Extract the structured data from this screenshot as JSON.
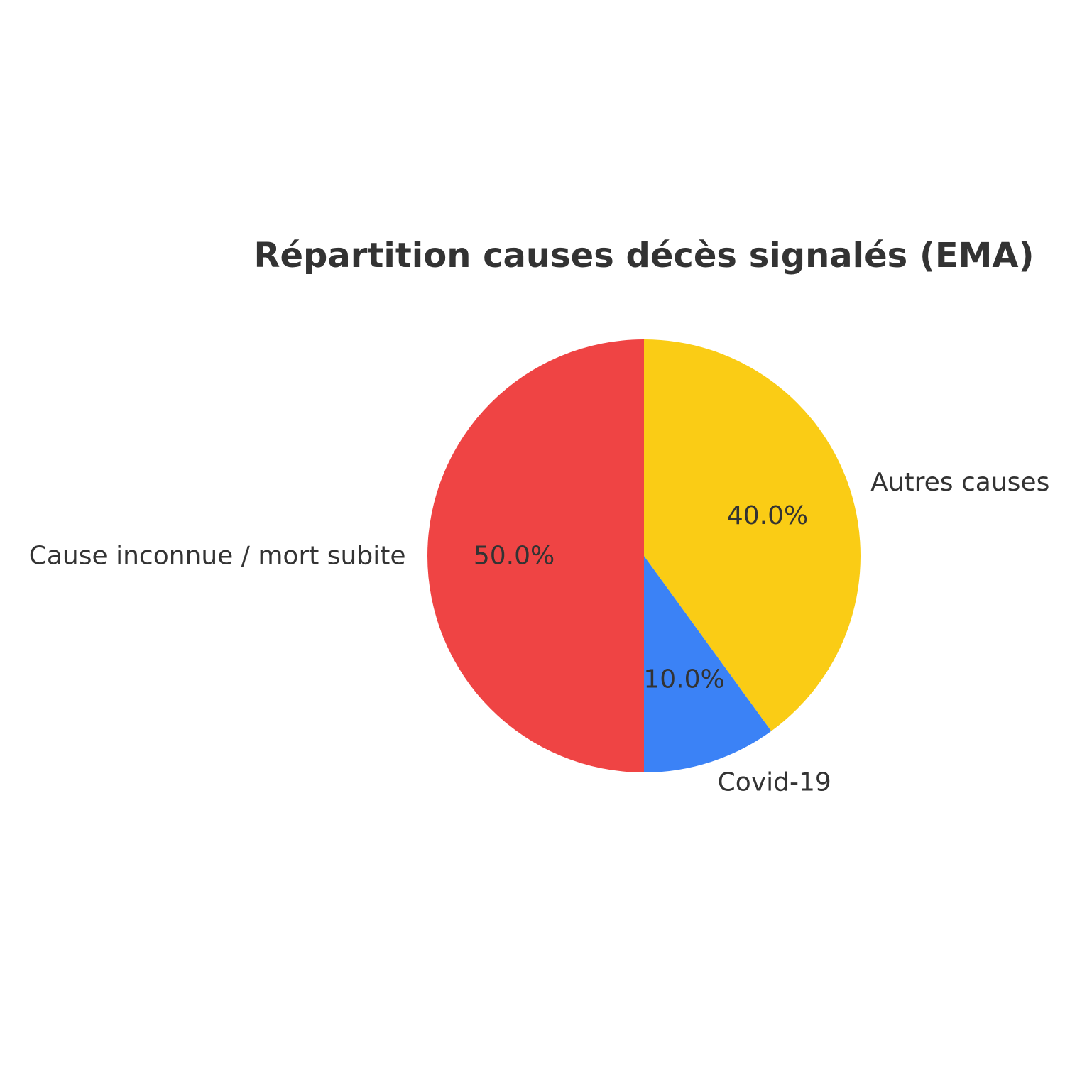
{
  "chart_data": {
    "type": "pie",
    "title": "Répartition causes décès signalés (EMA)",
    "categories": [
      "Autres causes",
      "Covid-19",
      "Cause inconnue / mort subite"
    ],
    "values": [
      40.0,
      10.0,
      50.0
    ],
    "percent_labels": [
      "40.0%",
      "10.0%",
      "50.0%"
    ],
    "colors": [
      "#FACC15",
      "#3B82F6",
      "#EF4444"
    ],
    "start_angle": "top (12 o'clock)",
    "direction": "clockwise",
    "legend": "none"
  }
}
